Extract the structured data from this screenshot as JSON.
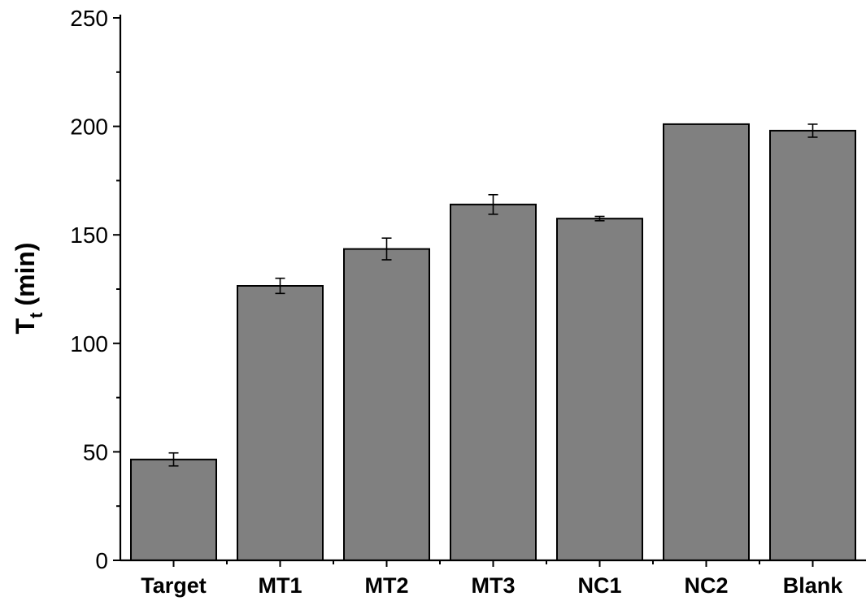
{
  "chart_data": {
    "type": "bar",
    "title": "",
    "xlabel": "",
    "ylabel": {
      "main": "T",
      "subscript": "t",
      "unit": "(min)"
    },
    "ylim": [
      0,
      250
    ],
    "yticks": [
      0,
      50,
      100,
      150,
      200,
      250
    ],
    "categories": [
      "Target",
      "MT1",
      "MT2",
      "MT3",
      "NC1",
      "NC2",
      "Blank"
    ],
    "values": [
      46.5,
      126.5,
      143.5,
      164,
      157.5,
      201,
      198
    ],
    "errors": [
      3,
      3.5,
      5,
      4.5,
      1,
      0,
      3
    ],
    "bar_color": "#808080",
    "grid": false
  }
}
